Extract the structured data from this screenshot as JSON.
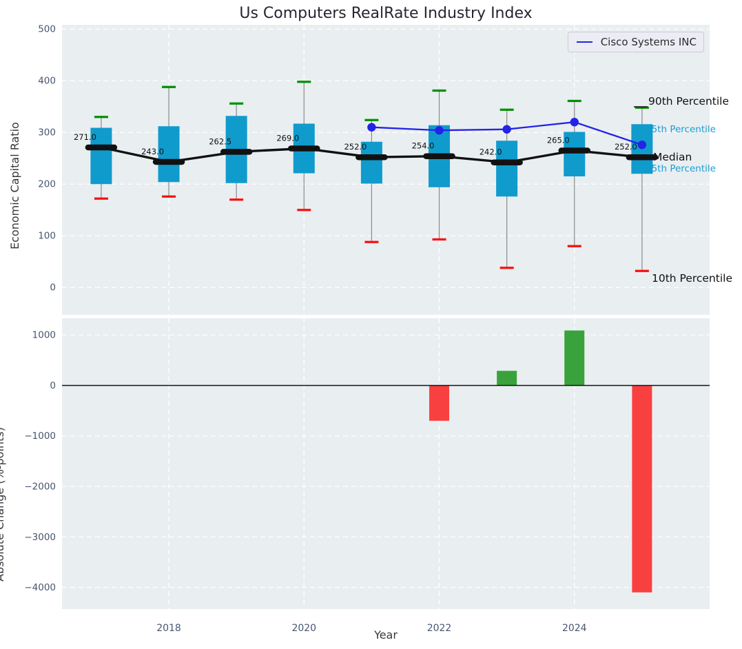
{
  "title": "Us Computers RealRate Industry Index",
  "legend": {
    "label": "Cisco Systems INC"
  },
  "annotations": {
    "p90": "90th Percentile",
    "p75": "75th Percentile",
    "median": "Median",
    "p25": "25th Percentile",
    "p10": "10th Percentile"
  },
  "axis_labels": {
    "top_y": "Economic Capital Ratio",
    "bottom_y": "Absolute Change (%-points)",
    "bottom_x": "Year"
  },
  "colors": {
    "plot_bg": "#e9eef1",
    "grid": "#ffffff",
    "box": "#109bcd",
    "green_cap": "#009000",
    "red_cap": "#fb0d0d",
    "whisker": "#8a8a8a",
    "median": "#111111",
    "cisco": "#2323e8",
    "bar_pos": "#3aa23c",
    "bar_neg": "#f94040",
    "tick": "#46556f",
    "annotation_cyan": "#1a9fd4"
  },
  "chart_data": [
    {
      "type": "box-whisker",
      "title": "Us Computers RealRate Industry Index",
      "ylabel": "Economic Capital Ratio",
      "ylim": [
        -53,
        508.3
      ],
      "xlim": [
        2016.42,
        2026.0
      ],
      "yticks": [
        0,
        100,
        200,
        300,
        400,
        500
      ],
      "xticks": [
        2018,
        2020,
        2022,
        2024
      ],
      "grid": true,
      "boxes": [
        {
          "year": 2017,
          "p90": 330,
          "p75": 309,
          "median": 271,
          "p25": 200,
          "p10": 172
        },
        {
          "year": 2018,
          "p90": 388,
          "p75": 312,
          "median": 243,
          "p25": 204,
          "p10": 176
        },
        {
          "year": 2019,
          "p90": 356,
          "p75": 332,
          "median": 262.5,
          "p25": 202,
          "p10": 170
        },
        {
          "year": 2020,
          "p90": 398,
          "p75": 317,
          "median": 269,
          "p25": 221,
          "p10": 150
        },
        {
          "year": 2021,
          "p90": 324,
          "p75": 282,
          "median": 252,
          "p25": 201,
          "p10": 88
        },
        {
          "year": 2022,
          "p90": 381,
          "p75": 314,
          "median": 254,
          "p25": 194,
          "p10": 93
        },
        {
          "year": 2023,
          "p90": 344,
          "p75": 284,
          "median": 242,
          "p25": 176,
          "p10": 38
        },
        {
          "year": 2024,
          "p90": 361,
          "p75": 301,
          "median": 265,
          "p25": 215,
          "p10": 80
        },
        {
          "year": 2025,
          "p90": 348,
          "p75": 316,
          "median": 252,
          "p25": 220,
          "p10": 32
        }
      ],
      "median_labels": [
        "271.0",
        "243.0",
        "262.5",
        "269.0",
        "252.0",
        "254.0",
        "242.0",
        "265.0",
        "252.0"
      ],
      "overlay_line": {
        "name": "Cisco Systems INC",
        "x": [
          2021,
          2022,
          2023,
          2024,
          2025
        ],
        "y": [
          310,
          304,
          306,
          320,
          276
        ]
      },
      "legend_position": "upper right"
    },
    {
      "type": "bar",
      "ylabel": "Absolute Change (%-points)",
      "xlabel": "Year",
      "ylim": [
        -4430,
        1331
      ],
      "xlim": [
        2016.42,
        2026.0
      ],
      "yticks": [
        1000,
        0,
        -1000,
        -2000,
        -3000,
        -4000
      ],
      "xticks": [
        2018,
        2020,
        2022,
        2024
      ],
      "grid": true,
      "zero_line": true,
      "x": [
        2022,
        2023,
        2024,
        2025
      ],
      "values": [
        -700,
        290,
        1090,
        -4100
      ]
    }
  ]
}
